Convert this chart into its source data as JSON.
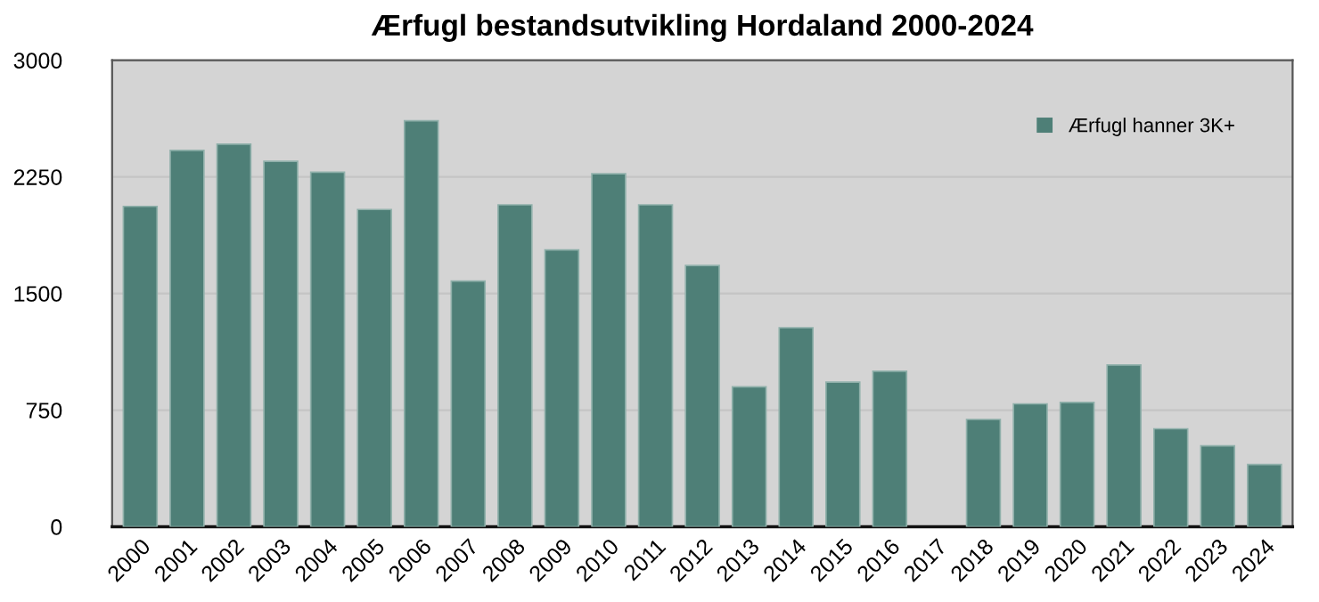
{
  "chart_data": {
    "type": "bar",
    "title": "Ærfugl bestandsutvikling Hordaland 2000-2024",
    "categories": [
      "2000",
      "2001",
      "2002",
      "2003",
      "2004",
      "2005",
      "2006",
      "2007",
      "2008",
      "2009",
      "2010",
      "2011",
      "2012",
      "2013",
      "2014",
      "2015",
      "2016",
      "2017",
      "2018",
      "2019",
      "2020",
      "2021",
      "2022",
      "2023",
      "2024"
    ],
    "series": [
      {
        "name": "Ærfugl hanner 3K+",
        "color": "#4e7f77",
        "values": [
          2060,
          2420,
          2460,
          2350,
          2280,
          2040,
          2610,
          1580,
          2070,
          1780,
          2270,
          2070,
          1680,
          900,
          1280,
          930,
          1000,
          null,
          690,
          790,
          800,
          1040,
          630,
          520,
          400
        ]
      }
    ],
    "ylim": [
      0,
      3000
    ],
    "yticks": [
      0,
      750,
      1500,
      2250,
      3000
    ],
    "grid": "y",
    "legend": "top right"
  }
}
